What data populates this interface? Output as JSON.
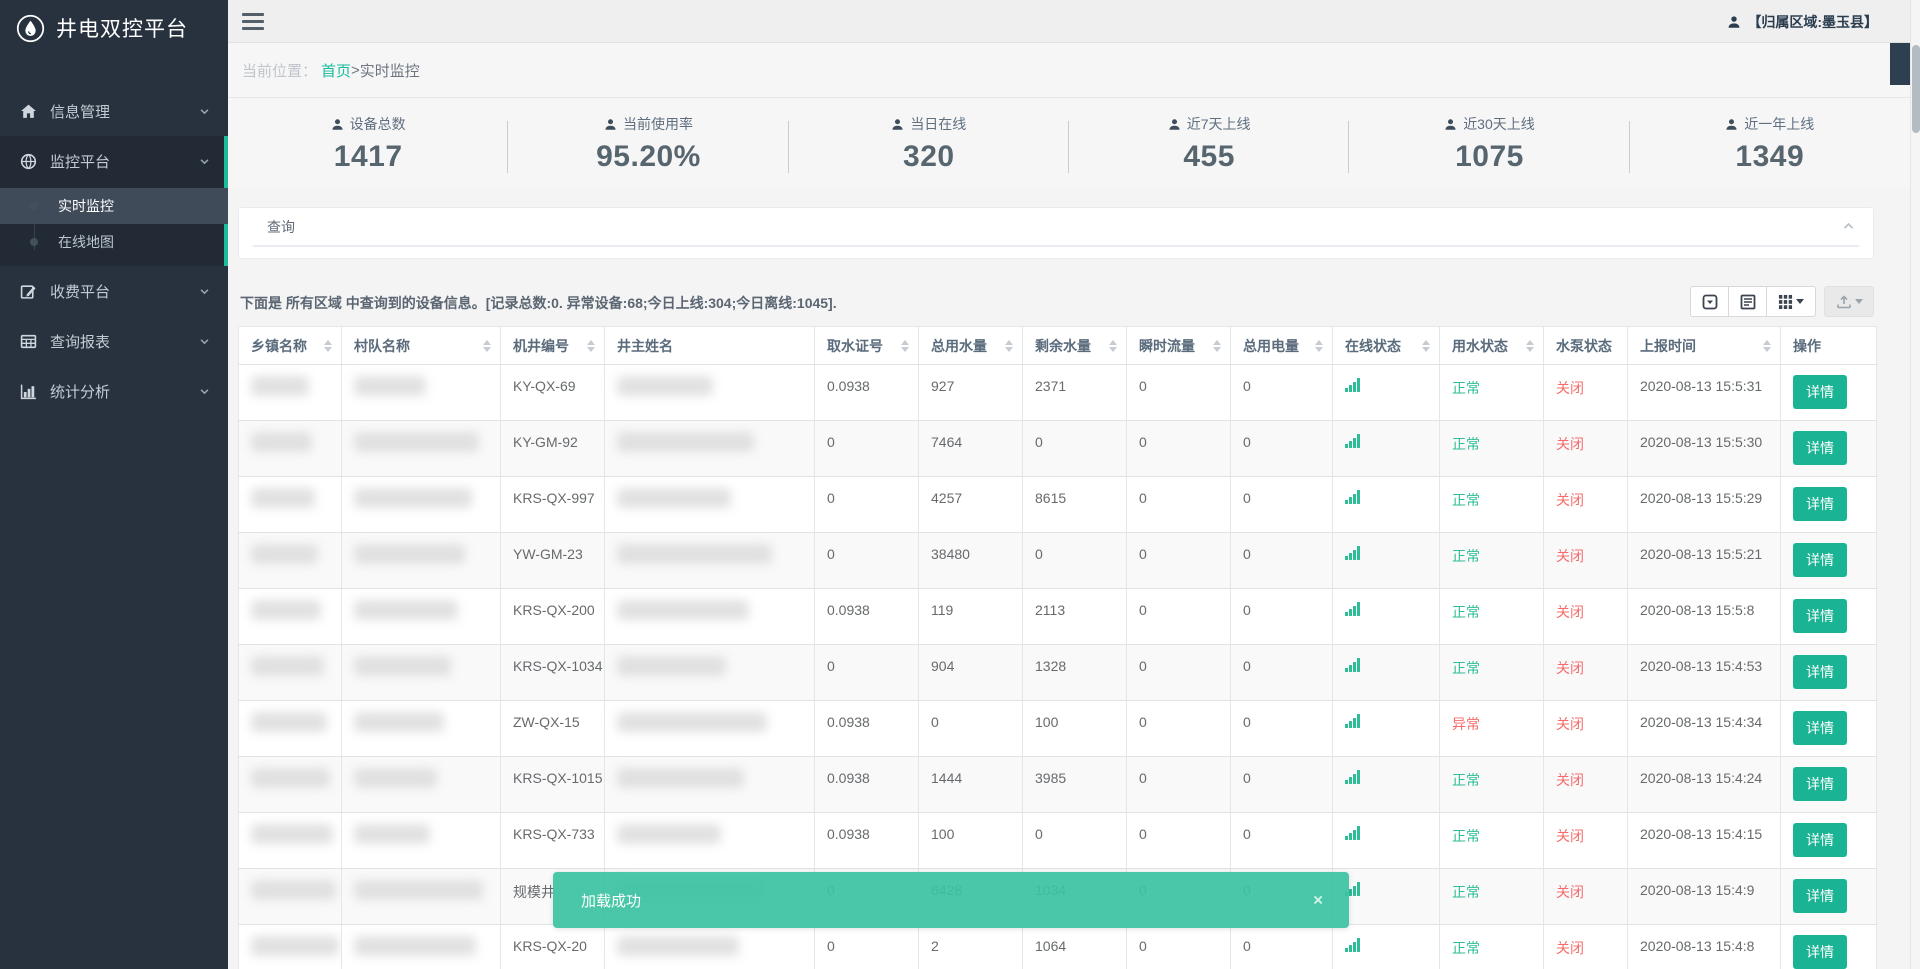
{
  "app": {
    "title": "井电双控平台"
  },
  "topbar": {
    "region_label": "【归属区域:墨玉县】"
  },
  "sidebar": {
    "items": [
      {
        "label": "信息管理",
        "icon": "home-icon"
      },
      {
        "label": "监控平台",
        "icon": "globe-icon"
      },
      {
        "label": "收费平台",
        "icon": "edit-icon"
      },
      {
        "label": "查询报表",
        "icon": "table-icon"
      },
      {
        "label": "统计分析",
        "icon": "bar-chart-icon"
      }
    ],
    "submenu": [
      {
        "label": "实时监控"
      },
      {
        "label": "在线地图"
      }
    ]
  },
  "breadcrumb": {
    "prefix": "当前位置：",
    "home": "首页",
    "separator": ">",
    "current": "实时监控"
  },
  "stats": [
    {
      "label": "设备总数",
      "value": "1417"
    },
    {
      "label": "当前使用率",
      "value": "95.20%"
    },
    {
      "label": "当日在线",
      "value": "320"
    },
    {
      "label": "近7天上线",
      "value": "455"
    },
    {
      "label": "近30天上线",
      "value": "1075"
    },
    {
      "label": "近一年上线",
      "value": "1349"
    }
  ],
  "query_panel": {
    "title": "查询"
  },
  "table": {
    "summary": "下面是 所有区域 中查询到的设备信息。[记录总数:0. 异常设备:68;今日上线:304;今日离线:1045].",
    "detail_label": "详情",
    "columns": [
      {
        "label": "乡镇名称",
        "sortable": true
      },
      {
        "label": "村队名称",
        "sortable": true
      },
      {
        "label": "机井编号",
        "sortable": true
      },
      {
        "label": "井主姓名",
        "sortable": false
      },
      {
        "label": "取水证号",
        "sortable": true
      },
      {
        "label": "总用水量",
        "sortable": true
      },
      {
        "label": "剩余水量",
        "sortable": true
      },
      {
        "label": "瞬时流量",
        "sortable": true
      },
      {
        "label": "总用电量",
        "sortable": true
      },
      {
        "label": "在线状态",
        "sortable": true
      },
      {
        "label": "用水状态",
        "sortable": true
      },
      {
        "label": "水泵状态",
        "sortable": false
      },
      {
        "label": "上报时间",
        "sortable": true
      },
      {
        "label": "操作",
        "sortable": false
      }
    ],
    "rows": [
      {
        "well_no": "KY-QX-69",
        "permit": "0.0938",
        "total_water": "927",
        "remain_water": "2371",
        "flow": "0",
        "power": "0",
        "water_status": "正常",
        "pump_status": "关闭",
        "time": "2020-08-13 15:5:31"
      },
      {
        "well_no": "KY-GM-92",
        "permit": "0",
        "total_water": "7464",
        "remain_water": "0",
        "flow": "0",
        "power": "0",
        "water_status": "正常",
        "pump_status": "关闭",
        "time": "2020-08-13 15:5:30"
      },
      {
        "well_no": "KRS-QX-997",
        "permit": "0",
        "total_water": "4257",
        "remain_water": "8615",
        "flow": "0",
        "power": "0",
        "water_status": "正常",
        "pump_status": "关闭",
        "time": "2020-08-13 15:5:29"
      },
      {
        "well_no": "YW-GM-23",
        "permit": "0",
        "total_water": "38480",
        "remain_water": "0",
        "flow": "0",
        "power": "0",
        "water_status": "正常",
        "pump_status": "关闭",
        "time": "2020-08-13 15:5:21"
      },
      {
        "well_no": "KRS-QX-200",
        "permit": "0.0938",
        "total_water": "119",
        "remain_water": "2113",
        "flow": "0",
        "power": "0",
        "water_status": "正常",
        "pump_status": "关闭",
        "time": "2020-08-13 15:5:8"
      },
      {
        "well_no": "KRS-QX-1034",
        "permit": "0",
        "total_water": "904",
        "remain_water": "1328",
        "flow": "0",
        "power": "0",
        "water_status": "正常",
        "pump_status": "关闭",
        "time": "2020-08-13 15:4:53"
      },
      {
        "well_no": "ZW-QX-15",
        "permit": "0.0938",
        "total_water": "0",
        "remain_water": "100",
        "flow": "0",
        "power": "0",
        "water_status": "异常",
        "pump_status": "关闭",
        "time": "2020-08-13 15:4:34"
      },
      {
        "well_no": "KRS-QX-1015",
        "permit": "0.0938",
        "total_water": "1444",
        "remain_water": "3985",
        "flow": "0",
        "power": "0",
        "water_status": "正常",
        "pump_status": "关闭",
        "time": "2020-08-13 15:4:24"
      },
      {
        "well_no": "KRS-QX-733",
        "permit": "0.0938",
        "total_water": "100",
        "remain_water": "0",
        "flow": "0",
        "power": "0",
        "water_status": "正常",
        "pump_status": "关闭",
        "time": "2020-08-13 15:4:15"
      },
      {
        "well_no": "规模井",
        "permit": "0",
        "total_water": "6428",
        "remain_water": "1034",
        "flow": "0",
        "power": "0",
        "water_status": "正常",
        "pump_status": "关闭",
        "time": "2020-08-13 15:4:9"
      },
      {
        "well_no": "KRS-QX-20",
        "permit": "0",
        "total_water": "2",
        "remain_water": "1064",
        "flow": "0",
        "power": "0",
        "water_status": "正常",
        "pump_status": "关闭",
        "time": "2020-08-13 15:4:8"
      }
    ]
  },
  "toast": {
    "message": "加载成功",
    "close": "×"
  },
  "colors": {
    "accent": "#18bc9c",
    "button_green": "#1ab394",
    "status_green": "#2dbd96",
    "status_red": "#f56c6c",
    "toast_green": "#3bc2a1",
    "sidebar_bg": "#28323e"
  }
}
